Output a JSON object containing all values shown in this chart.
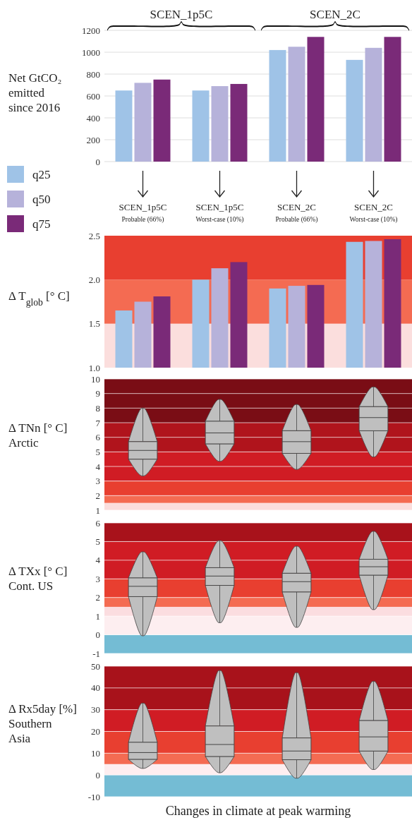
{
  "chart_data": [
    {
      "type": "bar",
      "ylabel": "Net GtCO₂\nemitted\nsince 2016",
      "annotations": [
        "SCEN_1p5C",
        "SCEN_2C"
      ],
      "categories": [
        "SCEN_1p5C\nProbable (66%)",
        "SCEN_1p5C\nWorst-case (10%)",
        "SCEN_2C\nProbable (66%)",
        "SCEN_2C\nWorst-case (10%)"
      ],
      "series": [
        {
          "name": "q25",
          "color": "#9fc3e7",
          "values": [
            650,
            650,
            1020,
            930
          ]
        },
        {
          "name": "q50",
          "color": "#b6b2da",
          "values": [
            720,
            690,
            1050,
            1040
          ]
        },
        {
          "name": "q75",
          "color": "#7a2a78",
          "values": [
            750,
            710,
            1140,
            1140
          ]
        }
      ],
      "ylim": [
        0,
        1200
      ],
      "yticks": [
        0,
        200,
        400,
        600,
        800,
        1000,
        1200
      ],
      "grid": "y",
      "legend": "left"
    },
    {
      "type": "bar",
      "ylabel": "Δ T$_{glob}$ [° C]",
      "categories": [
        null,
        null,
        null,
        null
      ],
      "series": [
        {
          "color": "#9fc3e7",
          "values": [
            1.65,
            2.0,
            1.9,
            2.43
          ]
        },
        {
          "color": "#b6b2da",
          "values": [
            1.75,
            2.13,
            1.93,
            2.44
          ]
        },
        {
          "color": "#7a2a78",
          "values": [
            1.81,
            2.2,
            1.94,
            2.46
          ]
        }
      ],
      "ylim": [
        1,
        2.5
      ],
      "yticks": [
        {
          "value": 1,
          "label": "1.0"
        },
        1.5,
        {
          "value": 2,
          "label": "2.0"
        },
        2.5
      ],
      "tick_labels": "y",
      "bands": [
        {
          "axis": "y",
          "from": 1,
          "to": 1.5,
          "color": "#fbdedd"
        },
        {
          "axis": "y",
          "from": 1.5,
          "to": 2,
          "color": "#f46b52"
        },
        {
          "axis": "y",
          "from": 2,
          "to": 2.5,
          "color": "#e83f30"
        }
      ]
    },
    {
      "type": "box",
      "ylabel": "Δ TNn [° C]\nArctic",
      "color": "#bfbfbf",
      "categories": [
        null,
        null,
        null,
        null
      ],
      "boxes": [
        {
          "low": 3.35,
          "q1": 4.5,
          "median": 5.1,
          "q3": 5.7,
          "high": 8.0
        },
        {
          "low": 4.35,
          "q1": 5.55,
          "median": 6.3,
          "q3": 7.1,
          "high": 8.6
        },
        {
          "low": 3.8,
          "q1": 4.9,
          "median": 5.7,
          "q3": 6.45,
          "high": 8.25
        },
        {
          "low": 4.65,
          "q1": 6.45,
          "median": 7.35,
          "q3": 8.1,
          "high": 9.45
        }
      ],
      "ylim": [
        1,
        10
      ],
      "yticks": [
        1,
        2,
        3,
        4,
        5,
        6,
        7,
        8,
        9,
        10
      ],
      "tick_labels": "y",
      "grid": "y",
      "bands": [
        {
          "axis": "y",
          "from": 1,
          "to": 1.5,
          "color": "#fbdedd"
        },
        {
          "axis": "y",
          "from": 1.5,
          "to": 2,
          "color": "#f46b52"
        },
        {
          "axis": "y",
          "from": 2,
          "to": 3,
          "color": "#e83f30"
        },
        {
          "axis": "y",
          "from": 3,
          "to": 5,
          "color": "#d01c24"
        },
        {
          "axis": "y",
          "from": 5,
          "to": 7,
          "color": "#b0141c"
        },
        {
          "axis": "y",
          "from": 7,
          "to": 10,
          "color": "#7a0d15"
        }
      ]
    },
    {
      "type": "box",
      "ylabel": "Δ TXx [° C]\nCont.  US",
      "color": "#bfbfbf",
      "categories": [
        null,
        null,
        null,
        null
      ],
      "boxes": [
        {
          "low": -0.05,
          "q1": 2.05,
          "median": 2.6,
          "q3": 3.05,
          "high": 4.45
        },
        {
          "low": 0.65,
          "q1": 2.65,
          "median": 3.15,
          "q3": 3.6,
          "high": 5.05
        },
        {
          "low": 0.4,
          "q1": 2.3,
          "median": 2.85,
          "q3": 3.3,
          "high": 4.75
        },
        {
          "low": 1.35,
          "q1": 3.2,
          "median": 3.65,
          "q3": 4.05,
          "high": 5.55
        }
      ],
      "ylim": [
        -1,
        6
      ],
      "yticks": [
        -1,
        0,
        1,
        2,
        3,
        4,
        5,
        6
      ],
      "tick_labels": "y",
      "grid": "y",
      "bands": [
        {
          "axis": "y",
          "from": -1,
          "to": 0,
          "color": "#74bcd4"
        },
        {
          "axis": "y",
          "from": 0,
          "to": 1,
          "color": "#fdeef0"
        },
        {
          "axis": "y",
          "from": 1,
          "to": 1.5,
          "color": "#fbdde0"
        },
        {
          "axis": "y",
          "from": 1.5,
          "to": 2,
          "color": "#f46b52"
        },
        {
          "axis": "y",
          "from": 2,
          "to": 3,
          "color": "#e83f30"
        },
        {
          "axis": "y",
          "from": 3,
          "to": 5,
          "color": "#d01c24"
        },
        {
          "axis": "y",
          "from": 5,
          "to": 6,
          "color": "#a8121b"
        }
      ]
    },
    {
      "type": "box",
      "ylabel": "Δ Rx5day [%]\nSouthern\nAsia",
      "xlabel": "Changes in climate at peak warming",
      "color": "#bfbfbf",
      "categories": [
        null,
        null,
        null,
        null
      ],
      "boxes": [
        {
          "low": 3,
          "q1": 7.2,
          "median": 10.3,
          "q3": 15,
          "high": 33
        },
        {
          "low": 1,
          "q1": 8.5,
          "median": 14,
          "q3": 22.5,
          "high": 48
        },
        {
          "low": -1.5,
          "q1": 7,
          "median": 11,
          "q3": 17,
          "high": 47
        },
        {
          "low": 2.5,
          "q1": 11,
          "median": 17.5,
          "q3": 25,
          "high": 43
        }
      ],
      "ylim": [
        -10,
        50
      ],
      "yticks": [
        -10,
        0,
        10,
        20,
        30,
        40,
        50
      ],
      "tick_labels": "y",
      "grid": "y",
      "bands": [
        {
          "axis": "y",
          "from": -10,
          "to": 0,
          "color": "#74bcd4"
        },
        {
          "axis": "y",
          "from": 0,
          "to": 5,
          "color": "#fdeef0"
        },
        {
          "axis": "y",
          "from": 5,
          "to": 10,
          "color": "#f46b52"
        },
        {
          "axis": "y",
          "from": 10,
          "to": 20,
          "color": "#e83f30"
        },
        {
          "axis": "y",
          "from": 20,
          "to": 30,
          "color": "#d01c24"
        },
        {
          "axis": "y",
          "from": 30,
          "to": 50,
          "color": "#a8121b"
        }
      ]
    }
  ]
}
